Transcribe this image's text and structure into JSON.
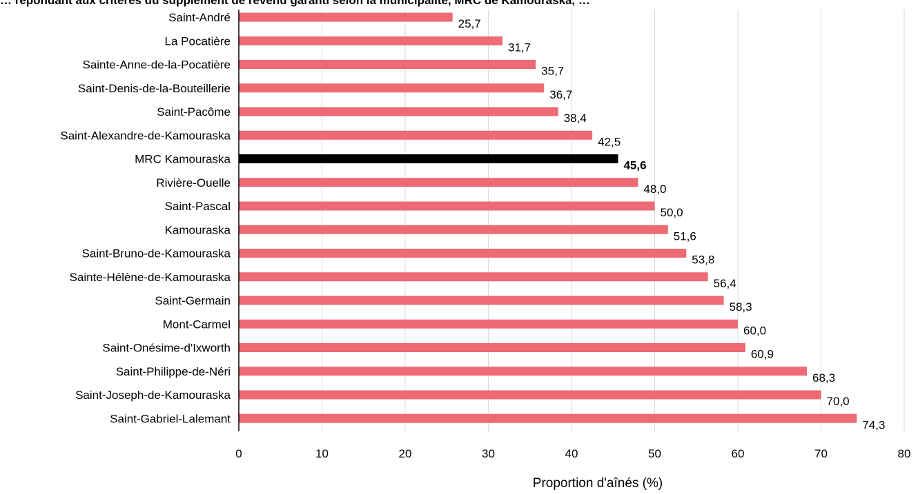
{
  "chart_data": {
    "type": "bar",
    "orientation": "horizontal",
    "title": "… répondant aux critères du supplément de revenu garanti selon la municipalité, MRC de Kamouraska, …",
    "xlabel": "Proportion d'aînés (%)",
    "ylabel": "",
    "xlim": [
      0,
      80
    ],
    "x_ticks": [
      0,
      10,
      20,
      30,
      40,
      50,
      60,
      70,
      80
    ],
    "grid": "vertical",
    "categories": [
      "Saint-André",
      "La Pocatière",
      "Sainte-Anne-de-la-Pocatière",
      "Saint-Denis-de-la-Bouteillerie",
      "Saint-Pacôme",
      "Saint-Alexandre-de-Kamouraska",
      "MRC Kamouraska",
      "Rivière-Ouelle",
      "Saint-Pascal",
      "Kamouraska",
      "Saint-Bruno-de-Kamouraska",
      "Sainte-Hélène-de-Kamouraska",
      "Saint-Germain",
      "Mont-Carmel",
      "Saint-Onésime-d'Ixworth",
      "Saint-Philippe-de-Néri",
      "Saint-Joseph-de-Kamouraska",
      "Saint-Gabriel-Lalemant"
    ],
    "values": [
      25.7,
      31.7,
      35.7,
      36.7,
      38.4,
      42.5,
      45.6,
      48.0,
      50.0,
      51.6,
      53.8,
      56.4,
      58.3,
      60.0,
      60.9,
      68.3,
      70.0,
      74.3
    ],
    "value_labels": [
      "25,7",
      "31,7",
      "35,7",
      "36,7",
      "38,4",
      "42,5",
      "45,6",
      "48,0",
      "50,0",
      "51,6",
      "53,8",
      "56,4",
      "58,3",
      "60,0",
      "60,9",
      "68,3",
      "70,0",
      "74,3"
    ],
    "highlight_category": "MRC Kamouraska",
    "colors": {
      "bar": "#ee6a75",
      "highlight": "#000000",
      "grid": "#d9d9d9",
      "axis": "#000000"
    }
  }
}
